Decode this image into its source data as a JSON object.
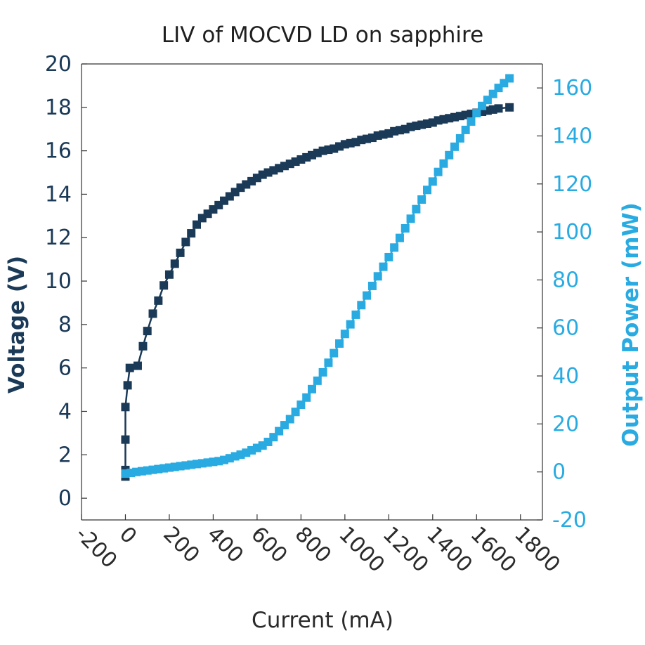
{
  "chart_data": {
    "type": "line",
    "title": "LIV of MOCVD LD on sapphire",
    "xlabel": "Current (mA)",
    "ylabel": "Voltage (V)",
    "y2label": "Output Power (mW)",
    "xlim": [
      -200,
      1900
    ],
    "ylim": [
      -1,
      20
    ],
    "y2lim": [
      -20,
      170
    ],
    "xticks": [
      "-200",
      "0",
      "200",
      "400",
      "600",
      "800",
      "1000",
      "1200",
      "1400",
      "1600",
      "1800"
    ],
    "xtick_values": [
      -200,
      0,
      200,
      400,
      600,
      800,
      1000,
      1200,
      1400,
      1600,
      1800
    ],
    "yticks": [
      "0",
      "2",
      "4",
      "6",
      "8",
      "10",
      "12",
      "14",
      "16",
      "18",
      "20"
    ],
    "ytick_values": [
      0,
      2,
      4,
      6,
      8,
      10,
      12,
      14,
      16,
      18,
      20
    ],
    "y2ticks": [
      "-20",
      "0",
      "20",
      "40",
      "60",
      "80",
      "100",
      "120",
      "140",
      "160"
    ],
    "y2tick_values": [
      -20,
      0,
      20,
      40,
      60,
      80,
      100,
      120,
      140,
      160
    ],
    "colors": {
      "voltage": "#1b3a57",
      "power": "#29abe2",
      "axis": "#333333"
    },
    "series": [
      {
        "key": "voltage",
        "axis": "left",
        "x": [
          0,
          0,
          0,
          0,
          10,
          20,
          56,
          80,
          100,
          125,
          150,
          175,
          200,
          225,
          250,
          275,
          300,
          325,
          350,
          375,
          400,
          425,
          450,
          475,
          500,
          525,
          550,
          575,
          600,
          625,
          650,
          675,
          700,
          725,
          750,
          775,
          800,
          825,
          850,
          875,
          900,
          925,
          950,
          975,
          1000,
          1025,
          1050,
          1075,
          1100,
          1125,
          1150,
          1175,
          1200,
          1225,
          1250,
          1275,
          1300,
          1325,
          1350,
          1375,
          1400,
          1425,
          1450,
          1475,
          1500,
          1525,
          1550,
          1575,
          1600,
          1625,
          1650,
          1675,
          1700,
          1750
        ],
        "y": [
          1.0,
          1.3,
          2.7,
          4.2,
          5.2,
          6.0,
          6.1,
          7.0,
          7.7,
          8.5,
          9.1,
          9.8,
          10.3,
          10.8,
          11.3,
          11.8,
          12.2,
          12.6,
          12.9,
          13.1,
          13.3,
          13.5,
          13.7,
          13.9,
          14.1,
          14.3,
          14.45,
          14.6,
          14.75,
          14.9,
          15.0,
          15.1,
          15.2,
          15.3,
          15.4,
          15.5,
          15.6,
          15.7,
          15.8,
          15.9,
          16.0,
          16.05,
          16.1,
          16.2,
          16.3,
          16.35,
          16.4,
          16.5,
          16.55,
          16.6,
          16.7,
          16.75,
          16.8,
          16.9,
          16.95,
          17.0,
          17.1,
          17.15,
          17.2,
          17.25,
          17.3,
          17.4,
          17.45,
          17.5,
          17.55,
          17.6,
          17.65,
          17.7,
          17.75,
          17.8,
          17.85,
          17.9,
          17.95,
          18.0
        ]
      },
      {
        "key": "power",
        "axis": "right",
        "x": [
          0,
          25,
          50,
          75,
          100,
          125,
          150,
          175,
          200,
          225,
          250,
          275,
          300,
          325,
          350,
          375,
          400,
          425,
          450,
          475,
          500,
          525,
          550,
          575,
          600,
          625,
          650,
          675,
          700,
          725,
          750,
          775,
          800,
          825,
          850,
          875,
          900,
          925,
          950,
          975,
          1000,
          1025,
          1050,
          1075,
          1100,
          1125,
          1150,
          1175,
          1200,
          1225,
          1250,
          1275,
          1300,
          1325,
          1350,
          1375,
          1400,
          1425,
          1450,
          1475,
          1500,
          1525,
          1550,
          1575,
          1600,
          1625,
          1650,
          1675,
          1700,
          1725,
          1750
        ],
        "y": [
          -0.7,
          -0.4,
          0,
          0.3,
          0.6,
          0.9,
          1.2,
          1.5,
          1.8,
          2.1,
          2.4,
          2.7,
          3.0,
          3.3,
          3.6,
          3.9,
          4.2,
          4.5,
          5.0,
          5.7,
          6.5,
          7.2,
          8.0,
          9.0,
          10.0,
          11.0,
          12.5,
          14.5,
          17.0,
          19.5,
          22.0,
          25.0,
          28.0,
          31.0,
          34.5,
          38.0,
          41.5,
          45.5,
          49.5,
          53.5,
          57.5,
          61.5,
          65.5,
          69.5,
          73.5,
          77.5,
          81.5,
          85.5,
          89.5,
          93.5,
          97.5,
          101.5,
          105.5,
          109.5,
          113.5,
          117.5,
          121.0,
          125.0,
          128.5,
          132.0,
          135.5,
          139.0,
          142.5,
          146.0,
          149.5,
          152.5,
          155.0,
          157.5,
          160.0,
          162.0,
          164.0
        ]
      }
    ]
  }
}
